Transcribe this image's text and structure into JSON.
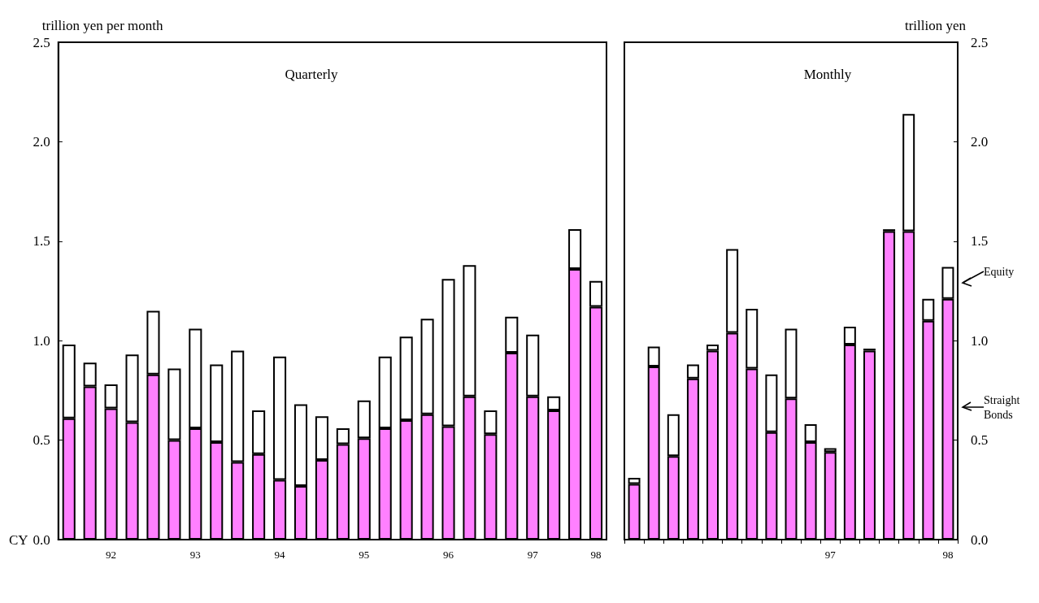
{
  "chart_data": [
    {
      "type": "bar",
      "title": "Quarterly",
      "ylabel": "trillion yen per month",
      "xlabel": "CY",
      "stacked": true,
      "categories": [
        null,
        null,
        "92",
        null,
        null,
        null,
        "93",
        null,
        null,
        null,
        "94",
        null,
        null,
        null,
        "95",
        null,
        null,
        null,
        "96",
        null,
        null,
        null,
        "97",
        null,
        null,
        "98"
      ],
      "ylim": [
        0,
        2.5
      ],
      "yticks": [
        {
          "value": 0,
          "label": "0.0"
        },
        {
          "value": 0.5,
          "label": "0.5"
        },
        {
          "value": 1,
          "label": "1.0"
        },
        {
          "value": 1.5,
          "label": "1.5"
        },
        {
          "value": 2,
          "label": "2.0"
        },
        {
          "value": 2.5,
          "label": "2.5"
        }
      ],
      "series": [
        {
          "color": "#ff80ff",
          "values": [
            0.61,
            0.77,
            0.66,
            0.59,
            0.83,
            0.5,
            0.56,
            0.49,
            0.39,
            0.43,
            0.3,
            0.27,
            0.4,
            0.48,
            0.51,
            0.56,
            0.6,
            0.63,
            0.57,
            0.72,
            0.53,
            0.94,
            0.72,
            0.65,
            1.36,
            1.17
          ]
        },
        {
          "color": "#ffffff",
          "values": [
            0.37,
            0.12,
            0.12,
            0.34,
            0.32,
            0.36,
            0.5,
            0.39,
            0.56,
            0.22,
            0.62,
            0.41,
            0.22,
            0.08,
            0.19,
            0.36,
            0.42,
            0.48,
            0.74,
            0.66,
            0.12,
            0.18,
            0.31,
            0.07,
            0.2,
            0.13
          ]
        }
      ]
    },
    {
      "type": "bar",
      "title": "Monthly",
      "ylabel": "trillion yen",
      "stacked": true,
      "legend": "right",
      "categories": [
        null,
        null,
        null,
        null,
        null,
        null,
        null,
        null,
        null,
        null,
        "97",
        null,
        null,
        null,
        null,
        null,
        "98"
      ],
      "ylim": [
        0,
        2.5
      ],
      "yticks": [
        {
          "value": 0,
          "label": "0.0"
        },
        {
          "value": 0.5,
          "label": "0.5"
        },
        {
          "value": 1,
          "label": "1.0"
        },
        {
          "value": 1.5,
          "label": "1.5"
        },
        {
          "value": 2,
          "label": "2.0"
        },
        {
          "value": 2.5,
          "label": "2.5"
        }
      ],
      "series": [
        {
          "name": "Straight Bonds",
          "color": "#ff80ff",
          "values": [
            0.28,
            0.87,
            0.42,
            0.81,
            0.95,
            1.04,
            0.86,
            0.54,
            0.71,
            0.49,
            0.44,
            0.98,
            0.95,
            1.55,
            1.55,
            1.1,
            1.21
          ]
        },
        {
          "name": "Equity",
          "color": "#ffffff",
          "values": [
            0.03,
            0.1,
            0.21,
            0.07,
            0.03,
            0.42,
            0.3,
            0.29,
            0.35,
            0.09,
            0.02,
            0.09,
            0.01,
            0.01,
            0.59,
            0.11,
            0.16
          ]
        }
      ]
    }
  ]
}
